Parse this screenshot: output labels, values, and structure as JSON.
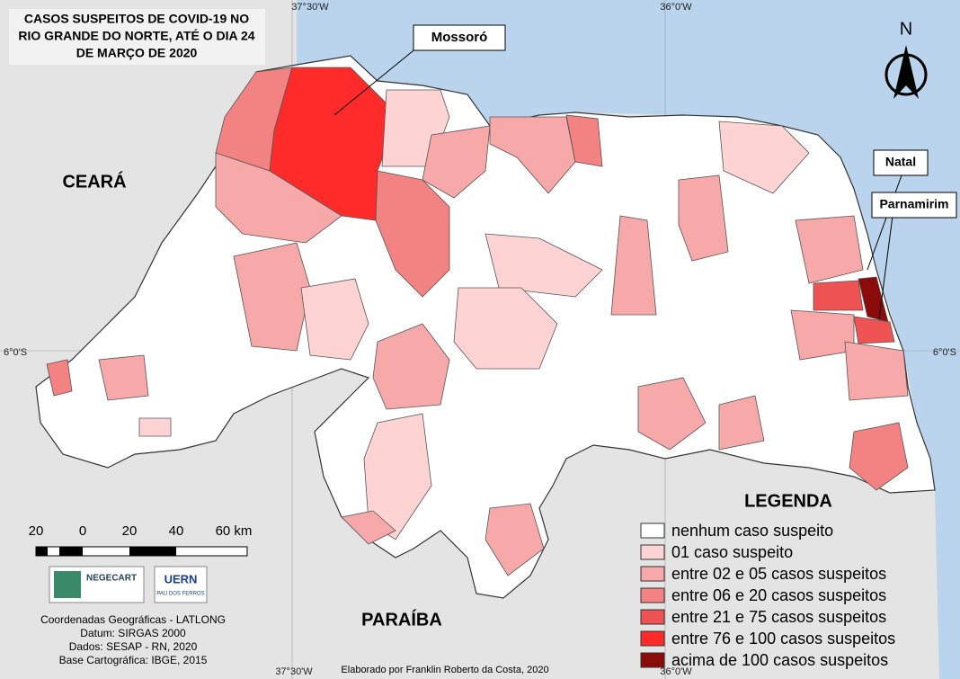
{
  "title_lines": [
    "CASOS SUSPEITOS DE COVID-19 NO",
    "RIO GRANDE DO NORTE, ATÉ O DIA 24",
    "DE MARÇO DE 2020"
  ],
  "north": "N",
  "places": {
    "ceara": "CEARÁ",
    "paraiba": "PARAÍBA"
  },
  "callouts": [
    "Mossoró",
    "Natal",
    "Parnamirim"
  ],
  "coordinates": {
    "top_left": "37°30'W",
    "top_right": "36°0'W",
    "bottom_left": "37°30'W",
    "bottom_right": "36°0'W",
    "left": "6°0'S",
    "right": "6°0'S"
  },
  "legend": {
    "title": "LEGENDA",
    "items": [
      {
        "label": "nenhum caso suspeito",
        "color": "#ffffff"
      },
      {
        "label": "01 caso suspeito",
        "color": "#fdd3d3"
      },
      {
        "label": "entre 02 e 05 casos suspeitos",
        "color": "#f7a9a9"
      },
      {
        "label": "entre 06 e 20 casos suspeitos",
        "color": "#f38282"
      },
      {
        "label": "entre 21 e 75 casos suspeitos",
        "color": "#ef5252"
      },
      {
        "label": "entre 76 e 100 casos suspeitos",
        "color": "#ff2a2a"
      },
      {
        "label": "acima de 100 casos suspeitos",
        "color": "#8b0a0a"
      }
    ]
  },
  "scale_bar": {
    "labels": [
      "20",
      "0",
      "20",
      "40",
      "60 km"
    ]
  },
  "logos": {
    "negecart": "NEGECART",
    "uern": "UERN",
    "uern_sub": "PAU DOS FERROS"
  },
  "credits": [
    "Coordenadas Geográficas - LATLONG",
    "Datum: SIRGAS 2000",
    "Dados: SESAP - RN, 2020",
    "Base Cartográfica: IBGE, 2015"
  ],
  "author": "Elaborado por Franklin Roberto da Costa, 2020"
}
